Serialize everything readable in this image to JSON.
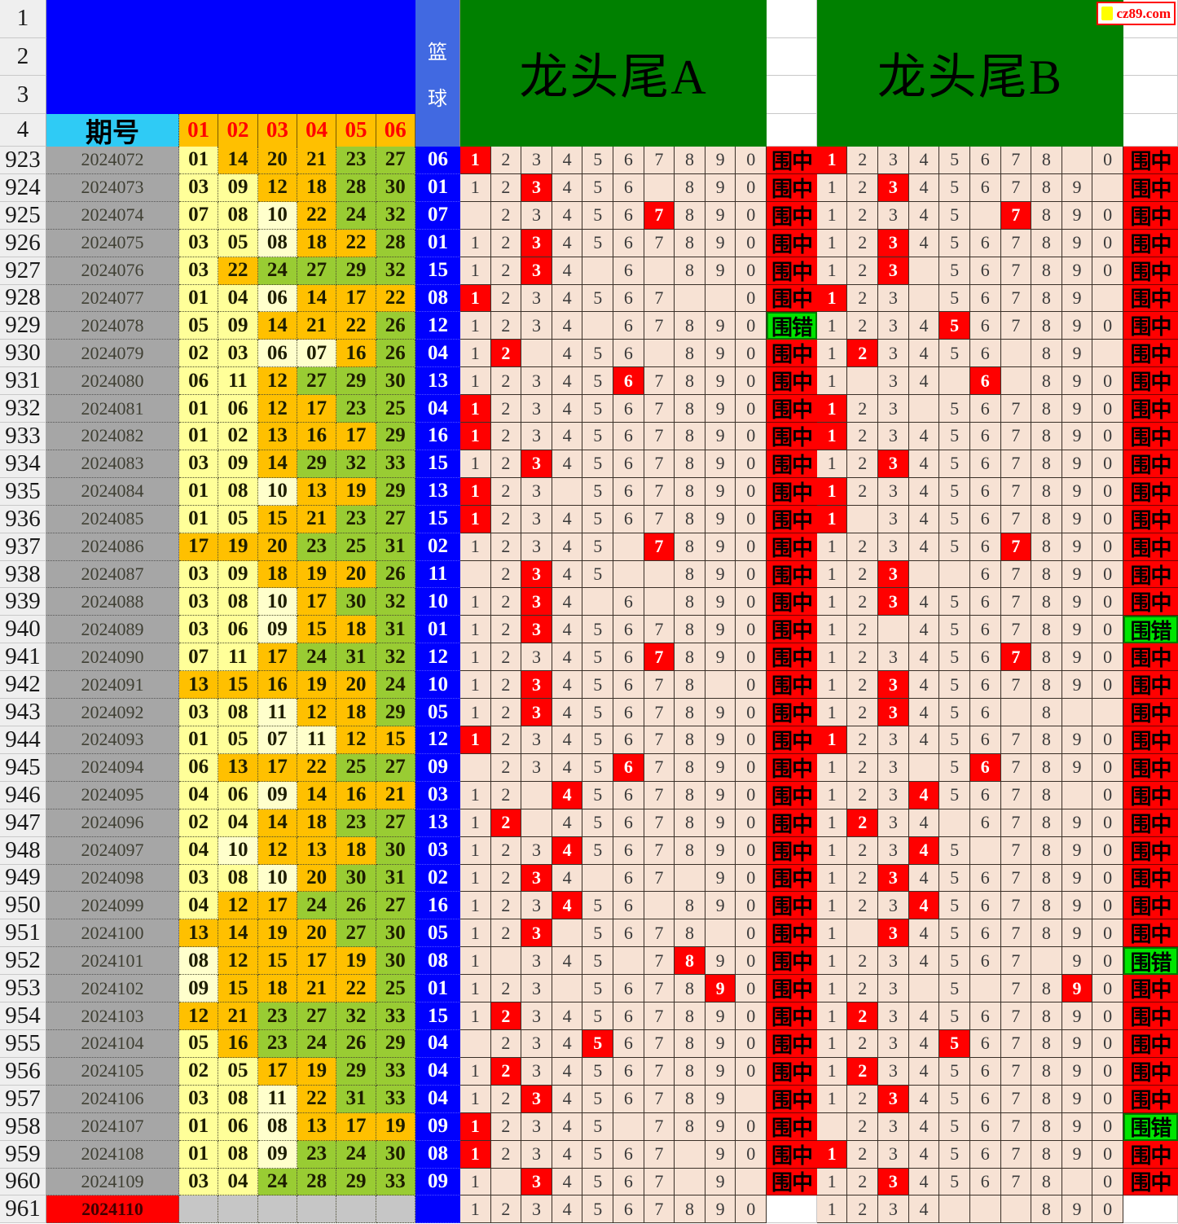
{
  "site": {
    "logo_text": "cz89.com"
  },
  "header": {
    "corner_rows": [
      "1",
      "2",
      "3",
      "4"
    ],
    "period_label": "期号",
    "ball_headers": [
      "01",
      "02",
      "03",
      "04",
      "05",
      "06"
    ],
    "basketball_label": [
      "篮",
      "球"
    ],
    "section_a_title": "龙头尾A",
    "section_b_title": "龙头尾B"
  },
  "status_labels": {
    "hit": "围中",
    "miss": "围错"
  },
  "digit_columns": [
    "1",
    "2",
    "3",
    "4",
    "5",
    "6",
    "7",
    "8",
    "9",
    "0"
  ],
  "colors": {
    "ball_yellow": "#FFFF99",
    "ball_pale": "#FFFFCC",
    "ball_gold": "#FFC000",
    "ball_green": "#99CC33",
    "basket_blue": "#0000FE",
    "basket_header_blue": "#4169E1",
    "period_cyan": "#2FCBF5",
    "section_green": "#008000",
    "digit_bg": "#F7E2D4",
    "hit_red": "#FF0000",
    "miss_green": "#00E400",
    "period_gray": "#A6A6A6",
    "empty_gray": "#C6C6C6"
  },
  "rows": [
    {
      "n": "923",
      "p": "2024072",
      "bl": [
        "01",
        "14",
        "20",
        "21",
        "23",
        "27"
      ],
      "sh": "ygggGG",
      "bk": "06",
      "a": {
        "m": [],
        "r": "1",
        "s": "hit"
      },
      "b": {
        "m": [
          "9"
        ],
        "r": "1",
        "s": "hit"
      }
    },
    {
      "n": "924",
      "p": "2024073",
      "bl": [
        "03",
        "09",
        "12",
        "18",
        "28",
        "30"
      ],
      "sh": "yyggGG",
      "bk": "01",
      "a": {
        "m": [
          "7"
        ],
        "r": "3",
        "s": "hit"
      },
      "b": {
        "m": [
          "0"
        ],
        "r": "3",
        "s": "hit"
      }
    },
    {
      "n": "925",
      "p": "2024074",
      "bl": [
        "07",
        "08",
        "10",
        "22",
        "24",
        "32"
      ],
      "sh": "yypgGG",
      "bk": "07",
      "a": {
        "m": [
          "1"
        ],
        "r": "7",
        "s": "hit"
      },
      "b": {
        "m": [
          "6"
        ],
        "r": "7",
        "s": "hit"
      }
    },
    {
      "n": "926",
      "p": "2024075",
      "bl": [
        "03",
        "05",
        "08",
        "18",
        "22",
        "28"
      ],
      "sh": "yypggG",
      "bk": "01",
      "a": {
        "m": [],
        "r": "3",
        "s": "hit"
      },
      "b": {
        "m": [],
        "r": "3",
        "s": "hit"
      }
    },
    {
      "n": "927",
      "p": "2024076",
      "bl": [
        "03",
        "22",
        "24",
        "27",
        "29",
        "32"
      ],
      "sh": "ygGGGG",
      "bk": "15",
      "a": {
        "m": [
          "5",
          "7"
        ],
        "r": "3",
        "s": "hit"
      },
      "b": {
        "m": [
          "4"
        ],
        "r": "3",
        "s": "hit"
      }
    },
    {
      "n": "928",
      "p": "2024077",
      "bl": [
        "01",
        "04",
        "06",
        "14",
        "17",
        "22"
      ],
      "sh": "yypggg",
      "bk": "08",
      "a": {
        "m": [
          "8",
          "9"
        ],
        "r": "1",
        "s": "hit"
      },
      "b": {
        "m": [
          "4",
          "0"
        ],
        "r": "1",
        "s": "hit"
      }
    },
    {
      "n": "929",
      "p": "2024078",
      "bl": [
        "05",
        "09",
        "14",
        "21",
        "22",
        "26"
      ],
      "sh": "yygggG",
      "bk": "12",
      "a": {
        "m": [
          "5"
        ],
        "r": null,
        "s": "miss"
      },
      "b": {
        "m": [],
        "r": "5",
        "s": "hit"
      }
    },
    {
      "n": "930",
      "p": "2024079",
      "bl": [
        "02",
        "03",
        "06",
        "07",
        "16",
        "26"
      ],
      "sh": "yyppgG",
      "bk": "04",
      "a": {
        "m": [
          "3",
          "7"
        ],
        "r": "2",
        "s": "hit"
      },
      "b": {
        "m": [
          "7",
          "0"
        ],
        "r": "2",
        "s": "hit"
      }
    },
    {
      "n": "931",
      "p": "2024080",
      "bl": [
        "06",
        "11",
        "12",
        "27",
        "29",
        "30"
      ],
      "sh": "yygGGG",
      "bk": "13",
      "a": {
        "m": [],
        "r": "6",
        "s": "hit"
      },
      "b": {
        "m": [
          "2",
          "5",
          "7"
        ],
        "r": "6",
        "s": "hit"
      }
    },
    {
      "n": "932",
      "p": "2024081",
      "bl": [
        "01",
        "06",
        "12",
        "17",
        "23",
        "25"
      ],
      "sh": "yyggGG",
      "bk": "04",
      "a": {
        "m": [],
        "r": "1",
        "s": "hit"
      },
      "b": {
        "m": [
          "4"
        ],
        "r": "1",
        "s": "hit"
      }
    },
    {
      "n": "933",
      "p": "2024082",
      "bl": [
        "01",
        "02",
        "13",
        "16",
        "17",
        "29"
      ],
      "sh": "yygggG",
      "bk": "16",
      "a": {
        "m": [],
        "r": "1",
        "s": "hit"
      },
      "b": {
        "m": [],
        "r": "1",
        "s": "hit"
      }
    },
    {
      "n": "934",
      "p": "2024083",
      "bl": [
        "03",
        "09",
        "14",
        "29",
        "32",
        "33"
      ],
      "sh": "yygGGG",
      "bk": "15",
      "a": {
        "m": [],
        "r": "3",
        "s": "hit"
      },
      "b": {
        "m": [],
        "r": "3",
        "s": "hit"
      }
    },
    {
      "n": "935",
      "p": "2024084",
      "bl": [
        "01",
        "08",
        "10",
        "13",
        "19",
        "29"
      ],
      "sh": "yypggG",
      "bk": "13",
      "a": {
        "m": [
          "4"
        ],
        "r": "1",
        "s": "hit"
      },
      "b": {
        "m": [],
        "r": "1",
        "s": "hit"
      }
    },
    {
      "n": "936",
      "p": "2024085",
      "bl": [
        "01",
        "05",
        "15",
        "21",
        "23",
        "27"
      ],
      "sh": "yyggGG",
      "bk": "15",
      "a": {
        "m": [],
        "r": "1",
        "s": "hit"
      },
      "b": {
        "m": [
          "2"
        ],
        "r": "1",
        "s": "hit"
      }
    },
    {
      "n": "937",
      "p": "2024086",
      "bl": [
        "17",
        "19",
        "20",
        "23",
        "25",
        "31"
      ],
      "sh": "gggGGG",
      "bk": "02",
      "a": {
        "m": [
          "6"
        ],
        "r": "7",
        "s": "hit"
      },
      "b": {
        "m": [],
        "r": "7",
        "s": "hit"
      }
    },
    {
      "n": "938",
      "p": "2024087",
      "bl": [
        "03",
        "09",
        "18",
        "19",
        "20",
        "26"
      ],
      "sh": "yygggG",
      "bk": "11",
      "a": {
        "m": [
          "1",
          "6",
          "7"
        ],
        "r": "3",
        "s": "hit"
      },
      "b": {
        "m": [
          "4",
          "5"
        ],
        "r": "3",
        "s": "hit"
      }
    },
    {
      "n": "939",
      "p": "2024088",
      "bl": [
        "03",
        "08",
        "10",
        "17",
        "30",
        "32"
      ],
      "sh": "yypgGG",
      "bk": "10",
      "a": {
        "m": [
          "5",
          "7"
        ],
        "r": "3",
        "s": "hit"
      },
      "b": {
        "m": [],
        "r": "3",
        "s": "hit"
      }
    },
    {
      "n": "940",
      "p": "2024089",
      "bl": [
        "03",
        "06",
        "09",
        "15",
        "18",
        "31"
      ],
      "sh": "yypggG",
      "bk": "01",
      "a": {
        "m": [],
        "r": "3",
        "s": "hit"
      },
      "b": {
        "m": [
          "3"
        ],
        "r": null,
        "s": "miss"
      }
    },
    {
      "n": "941",
      "p": "2024090",
      "bl": [
        "07",
        "11",
        "17",
        "24",
        "31",
        "32"
      ],
      "sh": "yygGGG",
      "bk": "12",
      "a": {
        "m": [],
        "r": "7",
        "s": "hit"
      },
      "b": {
        "m": [],
        "r": "7",
        "s": "hit"
      }
    },
    {
      "n": "942",
      "p": "2024091",
      "bl": [
        "13",
        "15",
        "16",
        "19",
        "20",
        "24"
      ],
      "sh": "gggggG",
      "bk": "10",
      "a": {
        "m": [
          "9"
        ],
        "r": "3",
        "s": "hit"
      },
      "b": {
        "m": [],
        "r": "3",
        "s": "hit"
      }
    },
    {
      "n": "943",
      "p": "2024092",
      "bl": [
        "03",
        "08",
        "11",
        "12",
        "18",
        "29"
      ],
      "sh": "yypggG",
      "bk": "05",
      "a": {
        "m": [],
        "r": "3",
        "s": "hit"
      },
      "b": {
        "m": [
          "7",
          "9",
          "0"
        ],
        "r": "3",
        "s": "hit"
      }
    },
    {
      "n": "944",
      "p": "2024093",
      "bl": [
        "01",
        "05",
        "07",
        "11",
        "12",
        "15"
      ],
      "sh": "yyppgg",
      "bk": "12",
      "a": {
        "m": [],
        "r": "1",
        "s": "hit"
      },
      "b": {
        "m": [],
        "r": "1",
        "s": "hit"
      }
    },
    {
      "n": "945",
      "p": "2024094",
      "bl": [
        "06",
        "13",
        "17",
        "22",
        "25",
        "27"
      ],
      "sh": "ygggGG",
      "bk": "09",
      "a": {
        "m": [
          "1"
        ],
        "r": "6",
        "s": "hit"
      },
      "b": {
        "m": [
          "4"
        ],
        "r": "6",
        "s": "hit"
      }
    },
    {
      "n": "946",
      "p": "2024095",
      "bl": [
        "04",
        "06",
        "09",
        "14",
        "16",
        "21"
      ],
      "sh": "yypggg",
      "bk": "03",
      "a": {
        "m": [
          "3"
        ],
        "r": "4",
        "s": "hit"
      },
      "b": {
        "m": [
          "9"
        ],
        "r": "4",
        "s": "hit"
      }
    },
    {
      "n": "947",
      "p": "2024096",
      "bl": [
        "02",
        "04",
        "14",
        "18",
        "23",
        "27"
      ],
      "sh": "yyggGG",
      "bk": "13",
      "a": {
        "m": [
          "3"
        ],
        "r": "2",
        "s": "hit"
      },
      "b": {
        "m": [
          "5"
        ],
        "r": "2",
        "s": "hit"
      }
    },
    {
      "n": "948",
      "p": "2024097",
      "bl": [
        "04",
        "10",
        "12",
        "13",
        "18",
        "30"
      ],
      "sh": "ypgggG",
      "bk": "03",
      "a": {
        "m": [],
        "r": "4",
        "s": "hit"
      },
      "b": {
        "m": [
          "6"
        ],
        "r": "4",
        "s": "hit"
      }
    },
    {
      "n": "949",
      "p": "2024098",
      "bl": [
        "03",
        "08",
        "10",
        "20",
        "30",
        "31"
      ],
      "sh": "yypgGG",
      "bk": "02",
      "a": {
        "m": [
          "5",
          "8"
        ],
        "r": "3",
        "s": "hit"
      },
      "b": {
        "m": [],
        "r": "3",
        "s": "hit"
      }
    },
    {
      "n": "950",
      "p": "2024099",
      "bl": [
        "04",
        "12",
        "17",
        "24",
        "26",
        "27"
      ],
      "sh": "yggGGG",
      "bk": "16",
      "a": {
        "m": [
          "7"
        ],
        "r": "4",
        "s": "hit"
      },
      "b": {
        "m": [],
        "r": "4",
        "s": "hit"
      }
    },
    {
      "n": "951",
      "p": "2024100",
      "bl": [
        "13",
        "14",
        "19",
        "20",
        "27",
        "30"
      ],
      "sh": "ggggGG",
      "bk": "05",
      "a": {
        "m": [
          "4",
          "9"
        ],
        "r": "3",
        "s": "hit"
      },
      "b": {
        "m": [
          "2"
        ],
        "r": "3",
        "s": "hit"
      }
    },
    {
      "n": "952",
      "p": "2024101",
      "bl": [
        "08",
        "12",
        "15",
        "17",
        "19",
        "30"
      ],
      "sh": "pggggG",
      "bk": "08",
      "a": {
        "m": [
          "2",
          "6"
        ],
        "r": "8",
        "s": "hit"
      },
      "b": {
        "m": [
          "8"
        ],
        "r": null,
        "s": "miss"
      }
    },
    {
      "n": "953",
      "p": "2024102",
      "bl": [
        "09",
        "15",
        "18",
        "21",
        "22",
        "25"
      ],
      "sh": "pggggG",
      "bk": "01",
      "a": {
        "m": [
          "4"
        ],
        "r": "9",
        "s": "hit"
      },
      "b": {
        "m": [
          "4",
          "6"
        ],
        "r": "9",
        "s": "hit"
      }
    },
    {
      "n": "954",
      "p": "2024103",
      "bl": [
        "12",
        "21",
        "23",
        "27",
        "32",
        "33"
      ],
      "sh": "ggGGGG",
      "bk": "15",
      "a": {
        "m": [],
        "r": "2",
        "s": "hit"
      },
      "b": {
        "m": [],
        "r": "2",
        "s": "hit"
      }
    },
    {
      "n": "955",
      "p": "2024104",
      "bl": [
        "05",
        "16",
        "23",
        "24",
        "26",
        "29"
      ],
      "sh": "ygGGGG",
      "bk": "04",
      "a": {
        "m": [
          "1"
        ],
        "r": "5",
        "s": "hit"
      },
      "b": {
        "m": [],
        "r": "5",
        "s": "hit"
      }
    },
    {
      "n": "956",
      "p": "2024105",
      "bl": [
        "02",
        "05",
        "17",
        "19",
        "29",
        "33"
      ],
      "sh": "yyggGG",
      "bk": "04",
      "a": {
        "m": [],
        "r": "2",
        "s": "hit"
      },
      "b": {
        "m": [],
        "r": "2",
        "s": "hit"
      }
    },
    {
      "n": "957",
      "p": "2024106",
      "bl": [
        "03",
        "08",
        "11",
        "22",
        "31",
        "33"
      ],
      "sh": "yypgGG",
      "bk": "04",
      "a": {
        "m": [
          "0"
        ],
        "r": "3",
        "s": "hit"
      },
      "b": {
        "m": [],
        "r": "3",
        "s": "hit"
      }
    },
    {
      "n": "958",
      "p": "2024107",
      "bl": [
        "01",
        "06",
        "08",
        "13",
        "17",
        "19"
      ],
      "sh": "yypggg",
      "bk": "09",
      "a": {
        "m": [
          "6"
        ],
        "r": "1",
        "s": "hit"
      },
      "b": {
        "m": [
          "1"
        ],
        "r": null,
        "s": "miss"
      }
    },
    {
      "n": "959",
      "p": "2024108",
      "bl": [
        "01",
        "08",
        "09",
        "23",
        "24",
        "30"
      ],
      "sh": "yypGGG",
      "bk": "08",
      "a": {
        "m": [
          "8"
        ],
        "r": "1",
        "s": "hit"
      },
      "b": {
        "m": [],
        "r": "1",
        "s": "hit"
      }
    },
    {
      "n": "960",
      "p": "2024109",
      "bl": [
        "03",
        "04",
        "24",
        "28",
        "29",
        "33"
      ],
      "sh": "yyGGGG",
      "bk": "09",
      "a": {
        "m": [
          "2",
          "8",
          "0"
        ],
        "r": "3",
        "s": "hit"
      },
      "b": {
        "m": [
          "9"
        ],
        "r": "3",
        "s": "hit"
      }
    },
    {
      "n": "961",
      "p": "2024110",
      "bl": null,
      "sh": null,
      "bk": "",
      "pred": true,
      "a": {
        "m": [],
        "r": null,
        "s": null
      },
      "b": {
        "m": [
          "5",
          "6",
          "7"
        ],
        "r": null,
        "s": null
      }
    }
  ]
}
